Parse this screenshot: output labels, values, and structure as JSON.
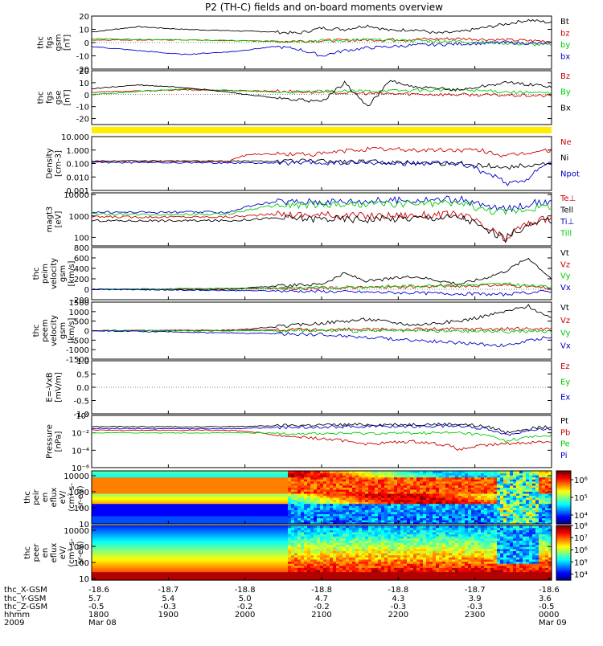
{
  "title": "P2 (TH-C) fields and on-board moments overview",
  "chart_data": [
    {
      "id": "fgs-gsm",
      "type": "line",
      "ylabel": [
        "thc",
        "fgs",
        "gsm",
        "[nT]"
      ],
      "ylim": [
        -20,
        20
      ],
      "yticks": [
        "20",
        "10",
        "0",
        "-10",
        "-20"
      ],
      "series": [
        {
          "name": "Bt",
          "color": "#000000",
          "x": [
            0,
            0.1,
            0.2,
            0.3,
            0.4,
            0.45,
            0.5,
            0.55,
            0.6,
            0.65,
            0.7,
            0.75,
            0.8,
            0.85,
            0.9,
            0.95,
            1
          ],
          "values": [
            8,
            12,
            10,
            9,
            8,
            7,
            11,
            10,
            13,
            9,
            10,
            7,
            8,
            11,
            14,
            17,
            15
          ]
        },
        {
          "name": "bz",
          "color": "#cc0000",
          "x": [
            0,
            0.2,
            0.4,
            0.6,
            0.8,
            1
          ],
          "values": [
            2,
            2,
            1,
            2,
            3,
            1
          ]
        },
        {
          "name": "by",
          "color": "#00cc00",
          "x": [
            0,
            0.2,
            0.4,
            0.6,
            0.8,
            1
          ],
          "values": [
            3,
            2,
            1,
            2,
            1,
            -2
          ]
        },
        {
          "name": "bx",
          "color": "#0000cc",
          "x": [
            0,
            0.1,
            0.2,
            0.3,
            0.4,
            0.45,
            0.5,
            0.55,
            0.6,
            0.7,
            0.8,
            0.9,
            1
          ],
          "values": [
            -3,
            -6,
            -9,
            -7,
            -3,
            -5,
            -10,
            -6,
            -4,
            -2,
            -1,
            0,
            -1
          ]
        }
      ]
    },
    {
      "id": "fgs-gse",
      "type": "line",
      "ylabel": [
        "thc",
        "fgs",
        "gse",
        "[nT]"
      ],
      "ylim": [
        -25,
        20
      ],
      "yticks": [
        "20",
        "10",
        "0",
        "-10",
        "-20"
      ],
      "series": [
        {
          "name": "Bz",
          "color": "#cc0000",
          "x": [
            0,
            0.2,
            0.4,
            0.6,
            0.8,
            1
          ],
          "values": [
            2,
            4,
            3,
            1,
            0,
            -1
          ]
        },
        {
          "name": "By",
          "color": "#00cc00",
          "x": [
            0,
            0.2,
            0.4,
            0.6,
            0.8,
            1
          ],
          "values": [
            0,
            5,
            2,
            3,
            4,
            1
          ]
        },
        {
          "name": "Bx",
          "color": "#000000",
          "x": [
            0,
            0.1,
            0.2,
            0.3,
            0.4,
            0.5,
            0.55,
            0.6,
            0.65,
            0.7,
            0.8,
            0.9,
            1
          ],
          "values": [
            5,
            8,
            6,
            2,
            -3,
            -6,
            10,
            -10,
            12,
            6,
            4,
            10,
            7
          ]
        }
      ]
    },
    {
      "id": "yellow-bar",
      "type": "area",
      "color": "#ffee00"
    },
    {
      "id": "density",
      "type": "line",
      "ylabel": [
        "Density",
        "[cm-3]"
      ],
      "yscale": "log",
      "ylim": [
        0.001,
        10
      ],
      "yticks": [
        "10.000",
        "1.000",
        "0.100",
        "0.010",
        "0.001"
      ],
      "series": [
        {
          "name": "Ne",
          "color": "#cc0000",
          "x": [
            0,
            0.3,
            0.35,
            0.5,
            0.6,
            0.7,
            0.8,
            0.85,
            0.9,
            1
          ],
          "values": [
            0.15,
            0.15,
            0.5,
            0.5,
            1.2,
            1,
            1,
            0.9,
            0.3,
            1
          ]
        },
        {
          "name": "Ni",
          "color": "#000000",
          "x": [
            0,
            0.3,
            0.5,
            0.7,
            0.8,
            0.9,
            1
          ],
          "values": [
            0.15,
            0.15,
            0.15,
            0.12,
            0.1,
            0.05,
            0.1
          ]
        },
        {
          "name": "Npot",
          "color": "#0000cc",
          "x": [
            0,
            0.8,
            0.85,
            0.9,
            0.95,
            1
          ],
          "values": [
            0.12,
            0.1,
            0.02,
            0.003,
            0.005,
            0.1
          ]
        }
      ]
    },
    {
      "id": "temperature",
      "type": "line",
      "ylabel": [
        "magt3",
        "[eV]"
      ],
      "yscale": "log",
      "ylim": [
        40,
        12000
      ],
      "yticks": [
        "10000",
        "1000",
        "100"
      ],
      "series": [
        {
          "name": "Te⊥",
          "color": "#cc0000",
          "x": [
            0,
            0.3,
            0.4,
            0.6,
            0.8,
            0.85,
            0.9,
            1
          ],
          "values": [
            900,
            900,
            1200,
            1000,
            1200,
            300,
            60,
            800
          ]
        },
        {
          "name": "Tell",
          "color": "#000000",
          "x": [
            0,
            0.3,
            0.4,
            0.6,
            0.8,
            0.85,
            0.9,
            1
          ],
          "values": [
            600,
            600,
            800,
            700,
            900,
            250,
            80,
            600
          ]
        },
        {
          "name": "Ti⊥",
          "color": "#0000cc",
          "x": [
            0,
            0.3,
            0.4,
            0.6,
            0.8,
            0.85,
            0.9,
            1
          ],
          "values": [
            1500,
            1500,
            4500,
            5000,
            6000,
            3000,
            2000,
            5000
          ]
        },
        {
          "name": "Till",
          "color": "#00cc00",
          "x": [
            0,
            0.3,
            0.4,
            0.6,
            0.8,
            0.85,
            0.9,
            1
          ],
          "values": [
            1200,
            1200,
            3000,
            3500,
            4000,
            2000,
            1500,
            3000
          ]
        }
      ]
    },
    {
      "id": "peim-velocity",
      "type": "line",
      "ylabel": [
        "thc",
        "peim",
        "velocity",
        "gsm",
        "[km/s]"
      ],
      "ylim": [
        -200,
        800
      ],
      "yticks": [
        "800",
        "600",
        "400",
        "200",
        "0",
        "-200"
      ],
      "series": [
        {
          "name": "Vt",
          "color": "#000000",
          "x": [
            0,
            0.3,
            0.4,
            0.5,
            0.55,
            0.6,
            0.7,
            0.8,
            0.85,
            0.9,
            0.95,
            1
          ],
          "values": [
            0,
            0,
            60,
            100,
            300,
            150,
            250,
            100,
            200,
            350,
            600,
            200
          ]
        },
        {
          "name": "Vz",
          "color": "#cc0000",
          "x": [
            0,
            0.5,
            0.9,
            1
          ],
          "values": [
            0,
            20,
            80,
            20
          ]
        },
        {
          "name": "Vy",
          "color": "#00cc00",
          "x": [
            0,
            0.5,
            0.9,
            1
          ],
          "values": [
            0,
            30,
            100,
            40
          ]
        },
        {
          "name": "Vx",
          "color": "#0000cc",
          "x": [
            0,
            0.5,
            0.9,
            1
          ],
          "values": [
            0,
            -40,
            -100,
            -30
          ]
        }
      ]
    },
    {
      "id": "peem-velocity",
      "type": "line",
      "ylabel": [
        "thc",
        "peem",
        "velocity",
        "gsm",
        "[km/s]"
      ],
      "ylim": [
        -1500,
        1500
      ],
      "yticks": [
        "1500",
        "1000",
        "500",
        "0",
        "-500",
        "-1000",
        "-1500"
      ],
      "series": [
        {
          "name": "Vt",
          "color": "#000000",
          "x": [
            0,
            0.3,
            0.4,
            0.5,
            0.6,
            0.7,
            0.8,
            0.9,
            0.95,
            1
          ],
          "values": [
            0,
            0,
            200,
            400,
            600,
            300,
            500,
            1000,
            1300,
            600
          ]
        },
        {
          "name": "Vz",
          "color": "#cc0000",
          "x": [
            0,
            0.5,
            1
          ],
          "values": [
            0,
            50,
            100
          ]
        },
        {
          "name": "Vy",
          "color": "#00cc00",
          "x": [
            0,
            0.5,
            1
          ],
          "values": [
            0,
            0,
            -50
          ]
        },
        {
          "name": "Vx",
          "color": "#0000cc",
          "x": [
            0,
            0.5,
            0.9,
            1
          ],
          "values": [
            0,
            -200,
            -800,
            -300
          ]
        }
      ]
    },
    {
      "id": "efield",
      "type": "line",
      "ylabel": [
        "E=-VxB",
        "[mV/m]"
      ],
      "ylim": [
        -1,
        1
      ],
      "yticks": [
        "1.0",
        "0.5",
        "0.0",
        "-0.5",
        "-1.0"
      ],
      "series": [
        {
          "name": "Ez",
          "color": "#cc0000"
        },
        {
          "name": "Ey",
          "color": "#00cc00"
        },
        {
          "name": "Ex",
          "color": "#0000cc"
        }
      ]
    },
    {
      "id": "pressure",
      "type": "line",
      "ylabel": [
        "Pressure",
        "[nPa]"
      ],
      "yscale": "log",
      "ylim": [
        1e-06,
        1
      ],
      "yticks": [
        "10⁰",
        "10⁻²",
        "10⁻⁴",
        "10⁻⁶"
      ],
      "series": [
        {
          "name": "Pt",
          "color": "#000000",
          "x": [
            0,
            0.3,
            0.5,
            0.8,
            0.9,
            1
          ],
          "values": [
            0.05,
            0.05,
            0.08,
            0.1,
            0.01,
            0.05
          ]
        },
        {
          "name": "Pb",
          "color": "#cc0000",
          "x": [
            0,
            0.3,
            0.4,
            0.5,
            0.6,
            0.7,
            0.8,
            1
          ],
          "values": [
            0.02,
            0.02,
            0.005,
            0.002,
            0.0005,
            0.001,
            0.0001,
            0.001
          ]
        },
        {
          "name": "Pe",
          "color": "#00cc00",
          "x": [
            0,
            0.3,
            0.5,
            0.8,
            0.9,
            1
          ],
          "values": [
            0.01,
            0.01,
            0.008,
            0.01,
            0.001,
            0.005
          ]
        },
        {
          "name": "Pi",
          "color": "#0000cc",
          "x": [
            0,
            0.3,
            0.5,
            0.8,
            0.9,
            1
          ],
          "values": [
            0.03,
            0.03,
            0.05,
            0.06,
            0.005,
            0.03
          ]
        }
      ]
    },
    {
      "id": "peir-spectrogram",
      "type": "heatmap",
      "ylabel": [
        "thc",
        "peir",
        "en",
        "eflux",
        "eV/",
        "(cm²-s-",
        "sr-eV)"
      ],
      "yscale": "log",
      "ylim": [
        10,
        20000
      ],
      "yticks": [
        "10000",
        "1000",
        "100",
        "10"
      ],
      "colorbar": {
        "ticks": [
          "10⁶",
          "10⁵",
          "10⁴"
        ],
        "range_log10": [
          3.5,
          6.5
        ]
      }
    },
    {
      "id": "peer-spectrogram",
      "type": "heatmap",
      "ylabel": [
        "thc",
        "peer",
        "en",
        "eflux",
        "eV/",
        "(cm²-s-",
        "sr-eV)"
      ],
      "yscale": "log",
      "ylim": [
        8,
        20000
      ],
      "yticks": [
        "10000",
        "1000",
        "100",
        "10"
      ],
      "colorbar": {
        "ticks": [
          "10⁸",
          "10⁷",
          "10⁶",
          "10⁵",
          "10⁴"
        ],
        "range_log10": [
          3.5,
          8.0
        ]
      }
    }
  ],
  "x_axis": {
    "row_labels": [
      "thc_X-GSM",
      "thc_Y-GSM",
      "thc_Z-GSM",
      "hhmm",
      "2009"
    ],
    "ticks": [
      {
        "x": 0,
        "X": "-18.6",
        "Y": "5.7",
        "Z": "-0.5",
        "hhmm": "1800",
        "date": "Mar 08"
      },
      {
        "x": 0.1667,
        "X": "-18.7",
        "Y": "5.4",
        "Z": "-0.3",
        "hhmm": "1900",
        "date": ""
      },
      {
        "x": 0.3333,
        "X": "-18.8",
        "Y": "5.0",
        "Z": "-0.2",
        "hhmm": "2000",
        "date": ""
      },
      {
        "x": 0.5,
        "X": "-18.8",
        "Y": "4.7",
        "Z": "-0.2",
        "hhmm": "2100",
        "date": ""
      },
      {
        "x": 0.6667,
        "X": "-18.8",
        "Y": "4.3",
        "Z": "-0.3",
        "hhmm": "2200",
        "date": ""
      },
      {
        "x": 0.8333,
        "X": "-18.7",
        "Y": "3.9",
        "Z": "-0.3",
        "hhmm": "2300",
        "date": ""
      },
      {
        "x": 1,
        "X": "-18.6",
        "Y": "3.6",
        "Z": "-0.5",
        "hhmm": "0000",
        "date": "Mar 09"
      }
    ]
  }
}
